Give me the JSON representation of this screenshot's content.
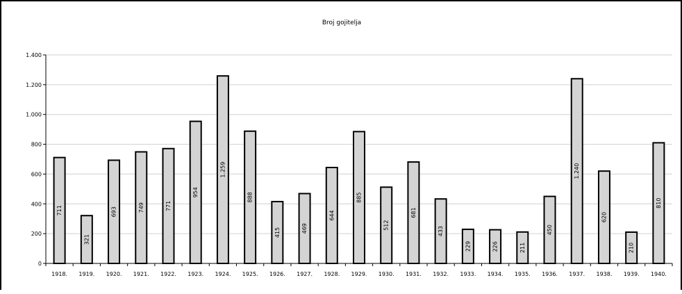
{
  "chart_data": {
    "type": "bar",
    "title": "Broj gojitelja",
    "xlabel": "",
    "ylabel": "",
    "categories": [
      "1918.",
      "1919.",
      "1920.",
      "1921.",
      "1922.",
      "1923.",
      "1924.",
      "1925.",
      "1926.",
      "1927.",
      "1928.",
      "1929.",
      "1930.",
      "1931.",
      "1932.",
      "1933.",
      "1934.",
      "1935.",
      "1936.",
      "1937.",
      "1938.",
      "1939.",
      "1940."
    ],
    "values": [
      711,
      321,
      693,
      749,
      771,
      954,
      1259,
      888,
      415,
      469,
      644,
      885,
      512,
      681,
      433,
      229,
      226,
      211,
      450,
      1240,
      620,
      210,
      810
    ],
    "value_labels": [
      "711",
      "321",
      "693",
      "749",
      "771",
      "954",
      "1.259",
      "888",
      "415",
      "469",
      "644",
      "885",
      "512",
      "681",
      "433",
      "229",
      "226",
      "211",
      "450",
      "1.240",
      "620",
      "210",
      "810"
    ],
    "ylim": [
      0,
      1400
    ],
    "yticks": [
      0,
      200,
      400,
      600,
      800,
      1000,
      1200,
      1400
    ],
    "ytick_labels": [
      "0",
      "200",
      "400",
      "600",
      "800",
      "1.000",
      "1.200",
      "1.400"
    ],
    "grid": true,
    "legend": "none",
    "colors": {
      "bar_fill": "#d4d4d4",
      "bar_stroke": "#000000",
      "grid": "#d0d0d0",
      "axis": "#000000"
    }
  }
}
